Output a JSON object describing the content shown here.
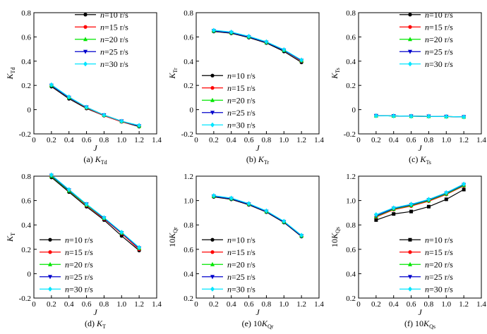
{
  "colors": {
    "axis": "#000000",
    "n10": "#000000",
    "n15": "#ff0000",
    "n20": "#00e600",
    "n25": "#0000cc",
    "n30": "#00e5ff"
  },
  "chart_data": [
    {
      "type": "line",
      "title": "(a) K_Td",
      "caption_prefix": "(a) ",
      "caption_main": "K",
      "caption_sub": "Td",
      "ylabel_main": "K",
      "ylabel_sub": "Td",
      "ylabel_prefix": "",
      "xlabel": "J",
      "xlim": [
        0,
        1.4
      ],
      "ylim": [
        -0.2,
        0.8
      ],
      "xticks": [
        "0",
        "0.2",
        "0.4",
        "0.6",
        "0.8",
        "1.0",
        "1.2",
        "1.4"
      ],
      "yticks": [
        "-0.2",
        "0",
        "0.2",
        "0.4",
        "0.6",
        "0.8"
      ],
      "legend": "top-right",
      "x": [
        0.2,
        0.4,
        0.6,
        0.8,
        1.0,
        1.2
      ],
      "series": [
        {
          "name": "n=10 r/s",
          "label_italic": "n",
          "label_rest": "=10 r/s",
          "color": "#000000",
          "marker": "circle",
          "values": [
            0.19,
            0.09,
            0.01,
            -0.05,
            -0.1,
            -0.14
          ]
        },
        {
          "name": "n=15 r/s",
          "label_italic": "n",
          "label_rest": "=15 r/s",
          "color": "#ff0000",
          "marker": "circle",
          "values": [
            0.2,
            0.1,
            0.015,
            -0.05,
            -0.1,
            -0.135
          ]
        },
        {
          "name": "n=20 r/s",
          "label_italic": "n",
          "label_rest": "=20 r/s",
          "color": "#00e600",
          "marker": "triangle-up",
          "values": [
            0.2,
            0.1,
            0.02,
            -0.045,
            -0.095,
            -0.135
          ]
        },
        {
          "name": "n=25 r/s",
          "label_italic": "n",
          "label_rest": "=25 r/s",
          "color": "#0000cc",
          "marker": "triangle-down",
          "values": [
            0.2,
            0.1,
            0.02,
            -0.045,
            -0.095,
            -0.135
          ]
        },
        {
          "name": "n=30 r/s",
          "label_italic": "n",
          "label_rest": "=30 r/s",
          "color": "#00e5ff",
          "marker": "diamond",
          "values": [
            0.205,
            0.105,
            0.02,
            -0.045,
            -0.095,
            -0.13
          ]
        }
      ]
    },
    {
      "type": "line",
      "title": "(b) K_Tr",
      "caption_prefix": "(b) ",
      "caption_main": "K",
      "caption_sub": "Tr",
      "ylabel_main": "K",
      "ylabel_sub": "Tr",
      "ylabel_prefix": "",
      "xlabel": "J",
      "xlim": [
        0,
        1.4
      ],
      "ylim": [
        -0.2,
        0.8
      ],
      "xticks": [
        "0",
        "0.2",
        "0.4",
        "0.6",
        "0.8",
        "1.0",
        "1.2",
        "1.4"
      ],
      "yticks": [
        "-0.2",
        "0",
        "0.2",
        "0.4",
        "0.6",
        "0.8"
      ],
      "legend": "bottom-left",
      "x": [
        0.2,
        0.4,
        0.6,
        0.8,
        1.0,
        1.2
      ],
      "series": [
        {
          "name": "n=10 r/s",
          "label_italic": "n",
          "label_rest": "=10 r/s",
          "color": "#000000",
          "marker": "circle",
          "values": [
            0.645,
            0.63,
            0.595,
            0.55,
            0.48,
            0.39
          ]
        },
        {
          "name": "n=15 r/s",
          "label_italic": "n",
          "label_rest": "=15 r/s",
          "color": "#ff0000",
          "marker": "circle",
          "values": [
            0.65,
            0.635,
            0.6,
            0.555,
            0.49,
            0.4
          ]
        },
        {
          "name": "n=20 r/s",
          "label_italic": "n",
          "label_rest": "=20 r/s",
          "color": "#00e600",
          "marker": "triangle-up",
          "values": [
            0.65,
            0.635,
            0.6,
            0.555,
            0.49,
            0.405
          ]
        },
        {
          "name": "n=25 r/s",
          "label_italic": "n",
          "label_rest": "=25 r/s",
          "color": "#0000cc",
          "marker": "triangle-down",
          "values": [
            0.65,
            0.635,
            0.6,
            0.555,
            0.49,
            0.405
          ]
        },
        {
          "name": "n=30 r/s",
          "label_italic": "n",
          "label_rest": "=30 r/s",
          "color": "#00e5ff",
          "marker": "diamond",
          "values": [
            0.655,
            0.64,
            0.605,
            0.56,
            0.495,
            0.41
          ]
        }
      ]
    },
    {
      "type": "line",
      "title": "(c) K_Ts",
      "caption_prefix": "(c) ",
      "caption_main": "K",
      "caption_sub": "Ts",
      "ylabel_main": "K",
      "ylabel_sub": "Ts",
      "ylabel_prefix": "",
      "xlabel": "J",
      "xlim": [
        0,
        1.4
      ],
      "ylim": [
        -0.2,
        0.8
      ],
      "xticks": [
        "0",
        "0.2",
        "0.4",
        "0.6",
        "0.8",
        "1.0",
        "1.2",
        "1.4"
      ],
      "yticks": [
        "-0.2",
        "0",
        "0.2",
        "0.4",
        "0.6",
        "0.8"
      ],
      "legend": "top-right",
      "x": [
        0.2,
        0.4,
        0.6,
        0.8,
        1.0,
        1.2
      ],
      "series": [
        {
          "name": "n=10 r/s",
          "label_italic": "n",
          "label_rest": "=10 r/s",
          "color": "#000000",
          "marker": "circle",
          "values": [
            -0.05,
            -0.052,
            -0.054,
            -0.055,
            -0.057,
            -0.06
          ]
        },
        {
          "name": "n=15 r/s",
          "label_italic": "n",
          "label_rest": "=15 r/s",
          "color": "#ff0000",
          "marker": "circle",
          "values": [
            -0.05,
            -0.052,
            -0.054,
            -0.055,
            -0.057,
            -0.06
          ]
        },
        {
          "name": "n=20 r/s",
          "label_italic": "n",
          "label_rest": "=20 r/s",
          "color": "#00e600",
          "marker": "triangle-up",
          "values": [
            -0.05,
            -0.052,
            -0.054,
            -0.055,
            -0.057,
            -0.06
          ]
        },
        {
          "name": "n=25 r/s",
          "label_italic": "n",
          "label_rest": "=25 r/s",
          "color": "#0000cc",
          "marker": "triangle-down",
          "values": [
            -0.05,
            -0.052,
            -0.054,
            -0.055,
            -0.057,
            -0.06
          ]
        },
        {
          "name": "n=30 r/s",
          "label_italic": "n",
          "label_rest": "=30 r/s",
          "color": "#00e5ff",
          "marker": "diamond",
          "values": [
            -0.05,
            -0.052,
            -0.054,
            -0.055,
            -0.057,
            -0.06
          ]
        }
      ]
    },
    {
      "type": "line",
      "title": "(d) K_T",
      "caption_prefix": "(d) ",
      "caption_main": "K",
      "caption_sub": "T",
      "ylabel_main": "K",
      "ylabel_sub": "T",
      "ylabel_prefix": "",
      "xlabel": "J",
      "xlim": [
        0,
        1.4
      ],
      "ylim": [
        -0.2,
        0.8
      ],
      "xticks": [
        "0",
        "0.2",
        "0.4",
        "0.6",
        "0.8",
        "1.0",
        "1.2",
        "1.4"
      ],
      "yticks": [
        "-0.2",
        "0",
        "0.2",
        "0.4",
        "0.6",
        "0.8"
      ],
      "legend": "bottom-left",
      "x": [
        0.2,
        0.4,
        0.6,
        0.8,
        1.0,
        1.2
      ],
      "series": [
        {
          "name": "n=10 r/s",
          "label_italic": "n",
          "label_rest": "=10 r/s",
          "color": "#000000",
          "marker": "circle",
          "values": [
            0.79,
            0.67,
            0.55,
            0.44,
            0.31,
            0.19
          ]
        },
        {
          "name": "n=15 r/s",
          "label_italic": "n",
          "label_rest": "=15 r/s",
          "color": "#ff0000",
          "marker": "circle",
          "values": [
            0.8,
            0.68,
            0.56,
            0.45,
            0.33,
            0.2
          ]
        },
        {
          "name": "n=20 r/s",
          "label_italic": "n",
          "label_rest": "=20 r/s",
          "color": "#00e600",
          "marker": "triangle-up",
          "values": [
            0.8,
            0.68,
            0.565,
            0.455,
            0.335,
            0.21
          ]
        },
        {
          "name": "n=25 r/s",
          "label_italic": "n",
          "label_rest": "=25 r/s",
          "color": "#0000cc",
          "marker": "triangle-down",
          "values": [
            0.805,
            0.685,
            0.57,
            0.455,
            0.335,
            0.21
          ]
        },
        {
          "name": "n=30 r/s",
          "label_italic": "n",
          "label_rest": "=30 r/s",
          "color": "#00e5ff",
          "marker": "diamond",
          "values": [
            0.81,
            0.69,
            0.57,
            0.46,
            0.34,
            0.215
          ]
        }
      ]
    },
    {
      "type": "line",
      "title": "(e) 10K_Qr",
      "caption_prefix": "(e) 10",
      "caption_main": "K",
      "caption_sub": "Qr",
      "ylabel_main": "K",
      "ylabel_sub": "Qr",
      "ylabel_prefix": "10",
      "xlabel": "J",
      "xlim": [
        0,
        1.4
      ],
      "ylim": [
        0.2,
        1.2
      ],
      "xticks": [
        "0",
        "0.2",
        "0.4",
        "0.6",
        "0.8",
        "1.0",
        "1.2",
        "1.4"
      ],
      "yticks": [
        "0.2",
        "0.4",
        "0.6",
        "0.8",
        "1.0",
        "1.2"
      ],
      "legend": "bottom-left",
      "x": [
        0.2,
        0.4,
        0.6,
        0.8,
        1.0,
        1.2
      ],
      "series": [
        {
          "name": "n=10 r/s",
          "label_italic": "n",
          "label_rest": "=10 r/s",
          "color": "#000000",
          "marker": "circle",
          "values": [
            1.03,
            1.01,
            0.965,
            0.905,
            0.82,
            0.705
          ]
        },
        {
          "name": "n=15 r/s",
          "label_italic": "n",
          "label_rest": "=15 r/s",
          "color": "#ff0000",
          "marker": "circle",
          "values": [
            1.035,
            1.015,
            0.97,
            0.91,
            0.825,
            0.71
          ]
        },
        {
          "name": "n=20 r/s",
          "label_italic": "n",
          "label_rest": "=20 r/s",
          "color": "#00e600",
          "marker": "triangle-up",
          "values": [
            1.035,
            1.015,
            0.97,
            0.91,
            0.825,
            0.71
          ]
        },
        {
          "name": "n=25 r/s",
          "label_italic": "n",
          "label_rest": "=25 r/s",
          "color": "#0000cc",
          "marker": "triangle-down",
          "values": [
            1.035,
            1.015,
            0.97,
            0.91,
            0.825,
            0.71
          ]
        },
        {
          "name": "n=30 r/s",
          "label_italic": "n",
          "label_rest": "=30 r/s",
          "color": "#00e5ff",
          "marker": "diamond",
          "values": [
            1.04,
            1.02,
            0.975,
            0.915,
            0.83,
            0.715
          ]
        }
      ]
    },
    {
      "type": "line",
      "title": "(f) 10K_Qs",
      "caption_prefix": "(f) 10",
      "caption_main": "K",
      "caption_sub": "Qs",
      "ylabel_main": "K",
      "ylabel_sub": "Qs",
      "ylabel_prefix": "10",
      "xlabel": "J",
      "xlim": [
        0,
        1.4
      ],
      "ylim": [
        0.2,
        1.2
      ],
      "xticks": [
        "0",
        "0.2",
        "0.4",
        "0.6",
        "0.8",
        "1.0",
        "1.2",
        "1.4"
      ],
      "yticks": [
        "0.2",
        "0.4",
        "0.6",
        "0.8",
        "1.0",
        "1.2"
      ],
      "legend": "bottom-right",
      "x": [
        0.2,
        0.4,
        0.6,
        0.8,
        1.0,
        1.2
      ],
      "series": [
        {
          "name": "n=10 r/s",
          "label_italic": "n",
          "label_rest": "=10 r/s",
          "color": "#000000",
          "marker": "square",
          "values": [
            0.84,
            0.89,
            0.91,
            0.95,
            1.01,
            1.09
          ]
        },
        {
          "name": "n=15 r/s",
          "label_italic": "n",
          "label_rest": "=15 r/s",
          "color": "#ff0000",
          "marker": "circle",
          "values": [
            0.865,
            0.925,
            0.955,
            0.995,
            1.05,
            1.12
          ]
        },
        {
          "name": "n=20 r/s",
          "label_italic": "n",
          "label_rest": "=20 r/s",
          "color": "#00e600",
          "marker": "triangle-up",
          "values": [
            0.87,
            0.93,
            0.96,
            1.0,
            1.055,
            1.125
          ]
        },
        {
          "name": "n=25 r/s",
          "label_italic": "n",
          "label_rest": "=25 r/s",
          "color": "#0000cc",
          "marker": "triangle-down",
          "values": [
            0.875,
            0.935,
            0.965,
            1.005,
            1.06,
            1.13
          ]
        },
        {
          "name": "n=30 r/s",
          "label_italic": "n",
          "label_rest": "=30 r/s",
          "color": "#00e5ff",
          "marker": "diamond",
          "values": [
            0.885,
            0.94,
            0.97,
            1.01,
            1.065,
            1.135
          ]
        }
      ]
    }
  ]
}
